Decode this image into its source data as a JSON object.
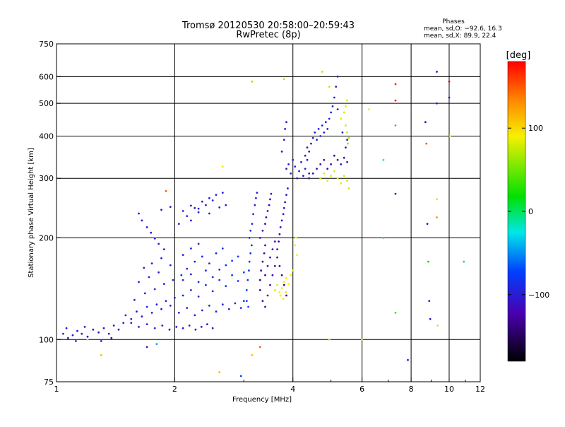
{
  "title_line1": "Tromsø 20120530 20:58:00–20:59:43",
  "title_line2": "RwPretec (8p)",
  "phases_header": "Phases",
  "phases_line1": "mean, sd,O: −92.6, 16.3",
  "phases_line2": "mean, sd,X:  89.9, 22.4",
  "colorbar_label": "[deg]",
  "colorbar_ticks": [
    {
      "v": 100,
      "label": "100"
    },
    {
      "v": 0,
      "label": "0"
    },
    {
      "v": -100,
      "label": "−100"
    }
  ],
  "chart_data": {
    "type": "scatter",
    "xlabel": "Frequency [MHz]",
    "ylabel": "Stationary phase Virtual Height [km]",
    "xscale": "log",
    "yscale": "log",
    "xlim": [
      1,
      12
    ],
    "ylim": [
      75,
      750
    ],
    "xticks": [
      {
        "v": 1,
        "label": "1"
      },
      {
        "v": 2,
        "label": "2"
      },
      {
        "v": 4,
        "label": "4"
      },
      {
        "v": 6,
        "label": "6"
      },
      {
        "v": 8,
        "label": "8"
      },
      {
        "v": 10,
        "label": "10"
      },
      {
        "v": 12,
        "label": "12"
      }
    ],
    "yticks": [
      {
        "v": 75,
        "label": "75"
      },
      {
        "v": 100,
        "label": "100"
      },
      {
        "v": 200,
        "label": "200"
      },
      {
        "v": 300,
        "label": "300"
      },
      {
        "v": 400,
        "label": "400"
      },
      {
        "v": 500,
        "label": "500"
      },
      {
        "v": 600,
        "label": "600"
      },
      {
        "v": 750,
        "label": "750"
      }
    ],
    "major_x_grid": [
      2,
      4,
      6,
      8,
      10
    ],
    "major_y_grid": [
      100,
      200,
      300,
      400,
      500,
      600
    ],
    "color_axis": {
      "label": "[deg]",
      "range": [
        -180,
        180
      ]
    },
    "points": [
      [
        1.04,
        104,
        -100
      ],
      [
        1.07,
        101,
        -100
      ],
      [
        1.1,
        103,
        -98
      ],
      [
        1.13,
        106,
        -102
      ],
      [
        1.16,
        104,
        -100
      ],
      [
        1.2,
        102,
        -99
      ],
      [
        1.24,
        107,
        -101
      ],
      [
        1.28,
        105,
        -100
      ],
      [
        1.32,
        108,
        -97
      ],
      [
        1.36,
        104,
        -100
      ],
      [
        1.4,
        110,
        -98
      ],
      [
        1.44,
        107,
        -100
      ],
      [
        1.48,
        112,
        -99
      ],
      [
        1.06,
        108,
        -100
      ],
      [
        1.12,
        99,
        -101
      ],
      [
        1.18,
        109,
        -100
      ],
      [
        1.3,
        99,
        -100
      ],
      [
        1.38,
        101,
        -100
      ],
      [
        1.5,
        118,
        -96
      ],
      [
        1.55,
        115,
        -98
      ],
      [
        1.6,
        121,
        -95
      ],
      [
        1.65,
        117,
        -97
      ],
      [
        1.7,
        125,
        -94
      ],
      [
        1.75,
        120,
        -96
      ],
      [
        1.8,
        127,
        -95
      ],
      [
        1.85,
        123,
        -97
      ],
      [
        1.9,
        130,
        -93
      ],
      [
        1.95,
        126,
        -95
      ],
      [
        2.0,
        133,
        -92
      ],
      [
        1.58,
        131,
        -94
      ],
      [
        1.68,
        137,
        -92
      ],
      [
        1.78,
        141,
        -90
      ],
      [
        1.88,
        146,
        -90
      ],
      [
        1.98,
        150,
        -88
      ],
      [
        2.08,
        155,
        -86
      ],
      [
        1.72,
        153,
        -92
      ],
      [
        1.82,
        158,
        -93
      ],
      [
        1.62,
        148,
        -95
      ],
      [
        1.67,
        163,
        -94
      ],
      [
        1.75,
        168,
        -94
      ],
      [
        1.85,
        174,
        -94
      ],
      [
        1.95,
        166,
        -92
      ],
      [
        1.55,
        112,
        -100
      ],
      [
        1.62,
        109,
        -100
      ],
      [
        1.7,
        111,
        -99
      ],
      [
        1.78,
        108,
        -100
      ],
      [
        1.86,
        110,
        -100
      ],
      [
        1.94,
        107,
        -100
      ],
      [
        2.02,
        109,
        -100
      ],
      [
        2.1,
        108,
        -100
      ],
      [
        2.18,
        110,
        -100
      ],
      [
        2.26,
        107,
        -100
      ],
      [
        2.34,
        109,
        -100
      ],
      [
        2.42,
        111,
        -100
      ],
      [
        2.5,
        108,
        -100
      ],
      [
        2.05,
        120,
        -95
      ],
      [
        2.15,
        124,
        -93
      ],
      [
        2.25,
        118,
        -96
      ],
      [
        2.35,
        122,
        -94
      ],
      [
        2.45,
        126,
        -92
      ],
      [
        2.55,
        121,
        -93
      ],
      [
        2.65,
        127,
        -90
      ],
      [
        2.75,
        123,
        -88
      ],
      [
        2.85,
        128,
        -85
      ],
      [
        2.95,
        124,
        -82
      ],
      [
        3.0,
        130,
        -80
      ],
      [
        2.1,
        135,
        -90
      ],
      [
        2.2,
        140,
        -88
      ],
      [
        2.3,
        134,
        -90
      ],
      [
        2.4,
        145,
        -85
      ],
      [
        2.5,
        139,
        -87
      ],
      [
        2.6,
        150,
        -82
      ],
      [
        2.7,
        144,
        -80
      ],
      [
        2.8,
        155,
        -78
      ],
      [
        2.9,
        149,
        -75
      ],
      [
        3.0,
        158,
        -72
      ],
      [
        2.6,
        161,
        -80
      ],
      [
        2.7,
        166,
        -78
      ],
      [
        2.8,
        171,
        -76
      ],
      [
        2.9,
        176,
        -75
      ],
      [
        2.1,
        150,
        -92
      ],
      [
        2.2,
        156,
        -90
      ],
      [
        2.3,
        148,
        -91
      ],
      [
        2.4,
        160,
        -89
      ],
      [
        2.5,
        153,
        -88
      ],
      [
        2.15,
        162,
        -90
      ],
      [
        2.25,
        170,
        -88
      ],
      [
        2.35,
        176,
        -86
      ],
      [
        2.45,
        168,
        -88
      ],
      [
        2.1,
        178,
        -89
      ],
      [
        2.2,
        186,
        -88
      ],
      [
        2.3,
        192,
        -87
      ],
      [
        2.55,
        180,
        -86
      ],
      [
        2.65,
        186,
        -84
      ],
      [
        2.05,
        220,
        -100
      ],
      [
        2.15,
        232,
        -98
      ],
      [
        2.25,
        245,
        -98
      ],
      [
        2.35,
        256,
        -97
      ],
      [
        2.45,
        262,
        -96
      ],
      [
        2.55,
        268,
        -96
      ],
      [
        2.65,
        272,
        -95
      ],
      [
        2.2,
        225,
        -99
      ],
      [
        2.3,
        238,
        -98
      ],
      [
        2.4,
        250,
        -97
      ],
      [
        2.5,
        258,
        -96
      ],
      [
        2.1,
        240,
        -100
      ],
      [
        2.2,
        249,
        -98
      ],
      [
        2.3,
        244,
        -97
      ],
      [
        2.45,
        236,
        -96
      ],
      [
        2.6,
        246,
        -95
      ],
      [
        2.7,
        250,
        -95
      ],
      [
        1.85,
        242,
        -98
      ],
      [
        1.95,
        247,
        -98
      ],
      [
        1.62,
        236,
        -100
      ],
      [
        1.65,
        225,
        -100
      ],
      [
        1.7,
        215,
        -100
      ],
      [
        1.74,
        207,
        -99
      ],
      [
        1.78,
        199,
        -99
      ],
      [
        1.82,
        192,
        -98
      ],
      [
        1.88,
        185,
        -98
      ],
      [
        3.05,
        140,
        -72
      ],
      [
        3.07,
        150,
        -75
      ],
      [
        3.09,
        160,
        -78
      ],
      [
        3.1,
        170,
        -80
      ],
      [
        3.12,
        180,
        -82
      ],
      [
        3.14,
        190,
        -84
      ],
      [
        3.1,
        200,
        -85
      ],
      [
        3.12,
        210,
        -86
      ],
      [
        3.15,
        220,
        -88
      ],
      [
        3.17,
        235,
        -90
      ],
      [
        3.2,
        250,
        -92
      ],
      [
        3.22,
        262,
        -93
      ],
      [
        3.24,
        272,
        -95
      ],
      [
        3.05,
        130,
        -70
      ],
      [
        3.08,
        125,
        -68
      ],
      [
        3.3,
        150,
        -130
      ],
      [
        3.32,
        160,
        -125
      ],
      [
        3.35,
        170,
        -128
      ],
      [
        3.38,
        180,
        -120
      ],
      [
        3.4,
        190,
        -122
      ],
      [
        3.3,
        200,
        -118
      ],
      [
        3.35,
        210,
        -115
      ],
      [
        3.4,
        220,
        -120
      ],
      [
        3.42,
        230,
        -125
      ],
      [
        3.45,
        240,
        -120
      ],
      [
        3.48,
        250,
        -118
      ],
      [
        3.5,
        260,
        -115
      ],
      [
        3.52,
        270,
        -120
      ],
      [
        3.3,
        140,
        -130
      ],
      [
        3.35,
        130,
        -125
      ],
      [
        3.4,
        125,
        -120
      ],
      [
        3.45,
        135,
        -118
      ],
      [
        3.5,
        145,
        -122
      ],
      [
        3.55,
        155,
        -120
      ],
      [
        3.6,
        165,
        -118
      ],
      [
        3.4,
        155,
        -125
      ],
      [
        3.45,
        165,
        -122
      ],
      [
        3.5,
        175,
        -120
      ],
      [
        3.55,
        185,
        -118
      ],
      [
        3.6,
        195,
        -115
      ],
      [
        3.65,
        185,
        -120
      ],
      [
        3.68,
        195,
        -122
      ],
      [
        3.7,
        205,
        -118
      ],
      [
        3.72,
        215,
        -115
      ],
      [
        3.75,
        225,
        -110
      ],
      [
        3.78,
        235,
        -112
      ],
      [
        3.8,
        245,
        -110
      ],
      [
        3.82,
        255,
        -108
      ],
      [
        3.85,
        268,
        -106
      ],
      [
        3.88,
        280,
        -104
      ],
      [
        3.65,
        175,
        -125
      ],
      [
        3.7,
        165,
        -128
      ],
      [
        3.75,
        155,
        -130
      ],
      [
        3.8,
        145,
        -132
      ],
      [
        3.85,
        135,
        -130
      ],
      [
        3.6,
        140,
        80
      ],
      [
        3.65,
        145,
        85
      ],
      [
        3.7,
        138,
        90
      ],
      [
        3.75,
        142,
        95
      ],
      [
        3.8,
        148,
        88
      ],
      [
        3.85,
        152,
        90
      ],
      [
        3.9,
        146,
        92
      ],
      [
        3.95,
        155,
        88
      ],
      [
        4.0,
        160,
        85
      ],
      [
        3.72,
        135,
        90
      ],
      [
        3.78,
        132,
        92
      ],
      [
        3.84,
        138,
        95
      ],
      [
        4.05,
        190,
        90
      ],
      [
        4.08,
        200,
        92
      ],
      [
        4.1,
        178,
        88
      ],
      [
        3.85,
        320,
        -100
      ],
      [
        3.9,
        330,
        -98
      ],
      [
        3.95,
        310,
        -100
      ],
      [
        4.0,
        340,
        -96
      ],
      [
        4.05,
        325,
        -98
      ],
      [
        4.1,
        300,
        -100
      ],
      [
        4.15,
        315,
        -98
      ],
      [
        4.2,
        335,
        -96
      ],
      [
        4.25,
        305,
        -100
      ],
      [
        4.3,
        320,
        -98
      ],
      [
        4.35,
        340,
        -95
      ],
      [
        4.4,
        310,
        -98
      ],
      [
        3.75,
        360,
        -100
      ],
      [
        3.8,
        390,
        -98
      ],
      [
        3.82,
        420,
        -96
      ],
      [
        3.85,
        440,
        -95
      ],
      [
        4.3,
        350,
        -100
      ],
      [
        4.35,
        370,
        -98
      ],
      [
        4.4,
        360,
        -100
      ],
      [
        4.45,
        380,
        -96
      ],
      [
        4.5,
        395,
        -98
      ],
      [
        4.55,
        410,
        -96
      ],
      [
        4.6,
        390,
        -98
      ],
      [
        4.65,
        420,
        -95
      ],
      [
        4.7,
        400,
        -96
      ],
      [
        4.75,
        430,
        -94
      ],
      [
        4.8,
        410,
        -95
      ],
      [
        4.85,
        440,
        -93
      ],
      [
        4.9,
        420,
        -94
      ],
      [
        4.95,
        450,
        -92
      ],
      [
        5.0,
        470,
        -92
      ],
      [
        5.05,
        490,
        -90
      ],
      [
        5.1,
        520,
        -92
      ],
      [
        5.15,
        560,
        -93
      ],
      [
        5.2,
        600,
        -95
      ],
      [
        4.4,
        300,
        -120
      ],
      [
        4.5,
        310,
        -118
      ],
      [
        4.6,
        320,
        -115
      ],
      [
        4.7,
        330,
        -118
      ],
      [
        4.8,
        340,
        -115
      ],
      [
        4.9,
        320,
        -120
      ],
      [
        5.0,
        330,
        -118
      ],
      [
        5.1,
        350,
        -115
      ],
      [
        5.2,
        340,
        -112
      ],
      [
        5.3,
        330,
        -110
      ],
      [
        5.4,
        345,
        -100
      ],
      [
        5.5,
        335,
        -98
      ],
      [
        5.45,
        370,
        -95
      ],
      [
        5.5,
        390,
        -100
      ],
      [
        5.35,
        410,
        -95
      ],
      [
        4.7,
        300,
        75
      ],
      [
        4.8,
        310,
        80
      ],
      [
        4.9,
        295,
        85
      ],
      [
        5.0,
        305,
        82
      ],
      [
        5.1,
        315,
        78
      ],
      [
        5.2,
        300,
        80
      ],
      [
        5.3,
        290,
        85
      ],
      [
        5.4,
        305,
        82
      ],
      [
        5.5,
        295,
        80
      ],
      [
        5.55,
        280,
        78
      ],
      [
        5.3,
        450,
        80
      ],
      [
        5.4,
        470,
        78
      ],
      [
        5.45,
        490,
        82
      ],
      [
        5.5,
        510,
        80
      ],
      [
        5.45,
        430,
        75
      ],
      [
        5.5,
        410,
        72
      ],
      [
        5.55,
        395,
        65
      ],
      [
        5.52,
        380,
        60
      ],
      [
        4.75,
        620,
        70
      ],
      [
        4.95,
        560,
        78
      ],
      [
        1.9,
        275,
        150
      ],
      [
        2.65,
        325,
        95
      ],
      [
        3.15,
        580,
        65
      ],
      [
        3.8,
        590,
        70
      ],
      [
        6.0,
        100,
        65
      ],
      [
        4.95,
        100,
        95
      ],
      [
        3.15,
        90,
        110
      ],
      [
        1.2,
        100,
        95
      ],
      [
        1.3,
        90,
        110
      ],
      [
        2.6,
        80,
        115
      ],
      [
        3.3,
        95,
        150
      ],
      [
        1.7,
        95,
        -110
      ],
      [
        1.8,
        97,
        -40
      ],
      [
        2.95,
        78,
        -70
      ],
      [
        7.3,
        570,
        170
      ],
      [
        7.3,
        510,
        175
      ],
      [
        7.3,
        430,
        30
      ],
      [
        7.3,
        270,
        -110
      ],
      [
        7.3,
        120,
        40
      ],
      [
        7.85,
        87,
        -100
      ],
      [
        8.7,
        440,
        -110
      ],
      [
        8.75,
        380,
        150
      ],
      [
        8.8,
        220,
        -110
      ],
      [
        8.85,
        170,
        20
      ],
      [
        8.9,
        130,
        -110
      ],
      [
        8.95,
        115,
        -105
      ],
      [
        9.3,
        620,
        -110
      ],
      [
        9.3,
        260,
        100
      ],
      [
        9.3,
        500,
        -100
      ],
      [
        9.3,
        230,
        130
      ],
      [
        9.35,
        110,
        100
      ],
      [
        10.0,
        580,
        180
      ],
      [
        10.0,
        520,
        -120
      ],
      [
        10.05,
        400,
        90
      ],
      [
        10.9,
        170,
        0
      ],
      [
        6.8,
        200,
        0
      ],
      [
        6.8,
        340,
        -20
      ],
      [
        5.2,
        480,
        -115
      ],
      [
        6.25,
        480,
        90
      ]
    ]
  }
}
